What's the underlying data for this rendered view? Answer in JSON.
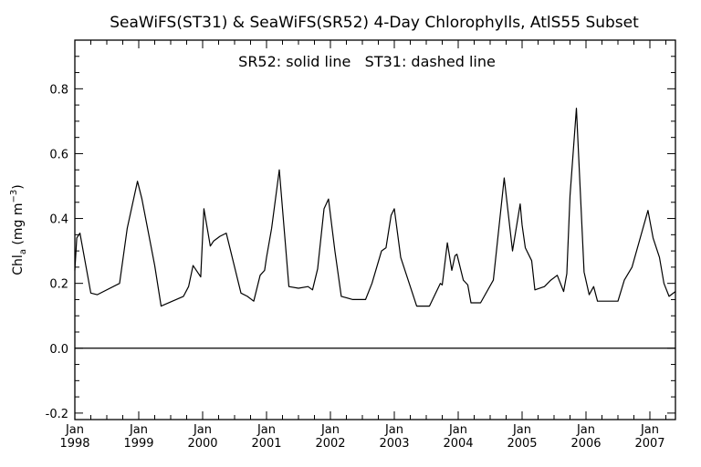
{
  "chart_data": {
    "type": "line",
    "title": "SeaWiFS(ST31) & SeaWiFS(SR52) 4-Day Chlorophylls, AtlS55 Subset",
    "annotation": "SR52: solid line   ST31: dashed line",
    "ylabel": "Chl_a (mg m^-3)",
    "ylabel_parts": {
      "base": "Chl",
      "sub": "a",
      "units": "(mg m",
      "sup": "−3",
      "close": ")"
    },
    "xlabel": "",
    "xlim": [
      1998.0,
      2007.4
    ],
    "ylim": [
      -0.22,
      0.95
    ],
    "yticks": [
      "-0.2",
      "0.0",
      "0.2",
      "0.4",
      "0.6",
      "0.8"
    ],
    "ytick_values": [
      -0.2,
      0.0,
      0.2,
      0.4,
      0.6,
      0.8
    ],
    "xticks": [
      {
        "value": 1998.0,
        "month": "Jan",
        "year": "1998"
      },
      {
        "value": 1999.0,
        "month": "Jan",
        "year": "1999"
      },
      {
        "value": 2000.0,
        "month": "Jan",
        "year": "2000"
      },
      {
        "value": 2001.0,
        "month": "Jan",
        "year": "2001"
      },
      {
        "value": 2002.0,
        "month": "Jan",
        "year": "2002"
      },
      {
        "value": 2003.0,
        "month": "Jan",
        "year": "2003"
      },
      {
        "value": 2004.0,
        "month": "Jan",
        "year": "2004"
      },
      {
        "value": 2005.0,
        "month": "Jan",
        "year": "2005"
      },
      {
        "value": 2006.0,
        "month": "Jan",
        "year": "2006"
      },
      {
        "value": 2007.0,
        "month": "Jan",
        "year": "2007"
      }
    ],
    "zero_line": 0.0,
    "series": [
      {
        "name": "SR52",
        "style": "solid",
        "color": "#000000",
        "x": [
          1998.0,
          1998.03,
          1998.08,
          1998.25,
          1998.35,
          1998.7,
          1998.82,
          1998.98,
          1999.05,
          1999.25,
          1999.35,
          1999.7,
          1999.78,
          1999.85,
          1999.97,
          2000.02,
          2000.12,
          2000.17,
          2000.27,
          2000.37,
          2000.6,
          2000.7,
          2000.8,
          2000.9,
          2000.97,
          2001.0,
          2001.08,
          2001.2,
          2001.35,
          2001.5,
          2001.65,
          2001.72,
          2001.8,
          2001.9,
          2001.97,
          2002.07,
          2002.17,
          2002.35,
          2002.55,
          2002.65,
          2002.8,
          2002.87,
          2002.95,
          2003.0,
          2003.1,
          2003.35,
          2003.55,
          2003.72,
          2003.75,
          2003.83,
          2003.9,
          2003.95,
          2003.98,
          2004.08,
          2004.15,
          2004.2,
          2004.35,
          2004.55,
          2004.72,
          2004.85,
          2004.97,
          2005.0,
          2005.05,
          2005.15,
          2005.2,
          2005.35,
          2005.45,
          2005.55,
          2005.65,
          2005.7,
          2005.75,
          2005.85,
          2005.97,
          2006.05,
          2006.12,
          2006.18,
          2006.25,
          2006.5,
          2006.6,
          2006.72,
          2006.97,
          2007.05,
          2007.15,
          2007.22,
          2007.3,
          2007.4
        ],
        "values": [
          0.24,
          0.34,
          0.355,
          0.17,
          0.165,
          0.2,
          0.37,
          0.515,
          0.46,
          0.255,
          0.13,
          0.16,
          0.19,
          0.255,
          0.22,
          0.43,
          0.315,
          0.33,
          0.345,
          0.355,
          0.17,
          0.16,
          0.145,
          0.225,
          0.24,
          0.28,
          0.37,
          0.55,
          0.19,
          0.185,
          0.19,
          0.18,
          0.245,
          0.43,
          0.46,
          0.3,
          0.16,
          0.15,
          0.15,
          0.2,
          0.3,
          0.31,
          0.41,
          0.43,
          0.28,
          0.13,
          0.13,
          0.2,
          0.195,
          0.325,
          0.24,
          0.285,
          0.29,
          0.21,
          0.195,
          0.14,
          0.14,
          0.21,
          0.525,
          0.3,
          0.445,
          0.38,
          0.31,
          0.27,
          0.18,
          0.19,
          0.21,
          0.225,
          0.175,
          0.23,
          0.47,
          0.74,
          0.235,
          0.165,
          0.19,
          0.145,
          0.145,
          0.145,
          0.21,
          0.25,
          0.425,
          0.34,
          0.28,
          0.2,
          0.16,
          0.175
        ]
      }
    ]
  }
}
